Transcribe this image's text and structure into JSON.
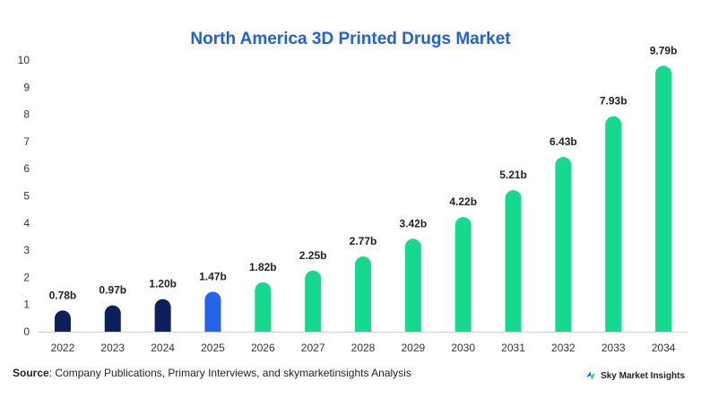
{
  "chart_data": {
    "type": "bar",
    "title": "North America 3D Printed Drugs Market",
    "xlabel": "",
    "ylabel": "",
    "categories": [
      "2022",
      "2023",
      "2024",
      "2025",
      "2026",
      "2027",
      "2028",
      "2029",
      "2030",
      "2031",
      "2032",
      "2033",
      "2034"
    ],
    "values": [
      0.78,
      0.97,
      1.2,
      1.47,
      1.82,
      2.25,
      2.77,
      3.42,
      4.22,
      5.21,
      6.43,
      7.93,
      9.79
    ],
    "data_labels": [
      "0.78b",
      "0.97b",
      "1.20b",
      "1.47b",
      "1.82b",
      "2.25b",
      "2.77b",
      "3.42b",
      "4.22b",
      "5.21b",
      "6.43b",
      "7.93b",
      "9.79b"
    ],
    "bar_colors": [
      "#0f1f5c",
      "#0f1f5c",
      "#0f1f5c",
      "#2563eb",
      "#14d98f",
      "#14d98f",
      "#14d98f",
      "#14d98f",
      "#14d98f",
      "#14d98f",
      "#14d98f",
      "#14d98f",
      "#14d98f"
    ],
    "ylim": [
      0,
      10
    ],
    "yticks": [
      "0",
      "1",
      "2",
      "3",
      "4",
      "5",
      "6",
      "7",
      "8",
      "9",
      "10"
    ],
    "grid": false,
    "legend": "none"
  },
  "footer": {
    "source_label": "Source",
    "source_text": ": Company Publications, Primary Interviews, and skymarketinsights Analysis",
    "brand": "Sky Market Insights"
  },
  "colors": {
    "title": "#1f5fe0",
    "historical": "#0f1f5c",
    "base_year": "#2563eb",
    "forecast": "#14d98f"
  },
  "icons": {
    "brand_logo": "sky-market-insights-logo-icon"
  }
}
